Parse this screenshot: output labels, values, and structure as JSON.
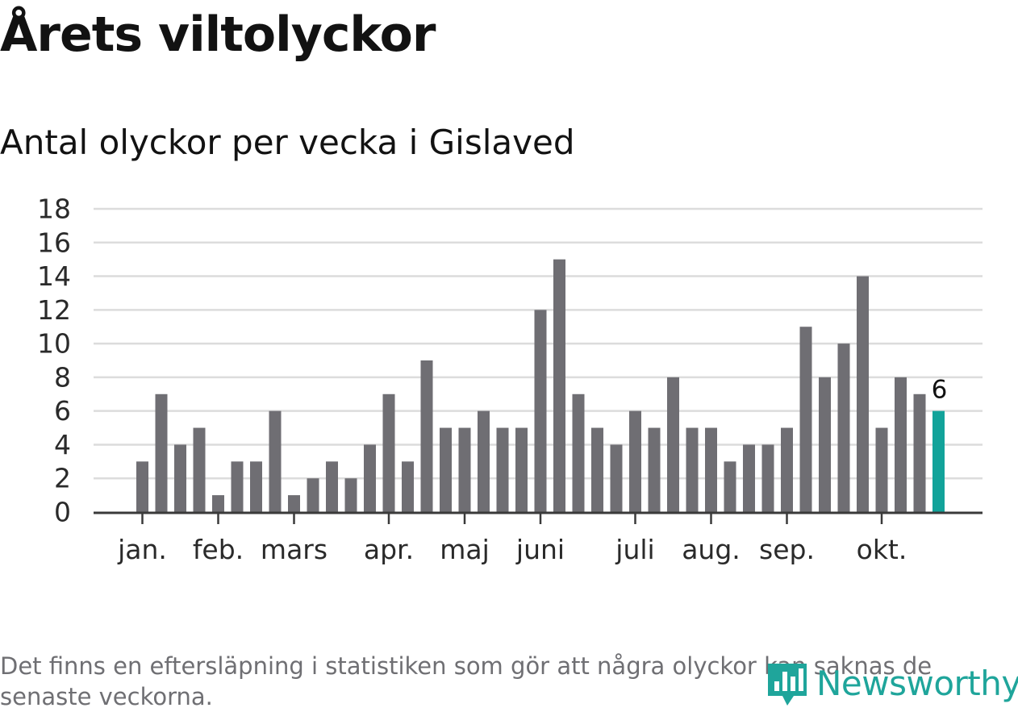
{
  "header": {
    "title": "Årets viltolyckor",
    "subtitle": "Antal olyckor per vecka i Gislaved"
  },
  "footnote": "Det finns en eftersläpning i statistiken som gör att några olyckor kan saknas de senaste veckorna.",
  "brand": {
    "name": "Newsworthy",
    "color": "#1fa59b",
    "icon": "newsworthy-chart-logo-icon"
  },
  "colors": {
    "bar": "#6f6e73",
    "highlight": "#12a39a",
    "grid": "#dcdcdc",
    "axis": "#3a3a3a"
  },
  "chart_data": {
    "type": "bar",
    "x_tick_labels": [
      "jan.",
      "feb.",
      "mars",
      "apr.",
      "maj",
      "juni",
      "juli",
      "aug.",
      "sep.",
      "okt."
    ],
    "x_tick_weeks": [
      1,
      5,
      9,
      14,
      18,
      22,
      27,
      31,
      35,
      40
    ],
    "weeks": [
      1,
      2,
      3,
      4,
      5,
      6,
      7,
      8,
      9,
      10,
      11,
      12,
      13,
      14,
      15,
      16,
      17,
      18,
      19,
      20,
      21,
      22,
      23,
      24,
      25,
      26,
      27,
      28,
      29,
      30,
      31,
      32,
      33,
      34,
      35,
      36,
      37,
      38,
      39,
      40,
      41,
      42,
      43
    ],
    "values": [
      3,
      7,
      4,
      5,
      1,
      3,
      3,
      6,
      1,
      2,
      3,
      2,
      4,
      7,
      3,
      9,
      5,
      5,
      6,
      5,
      5,
      12,
      15,
      7,
      5,
      4,
      6,
      5,
      8,
      5,
      5,
      3,
      4,
      4,
      5,
      11,
      8,
      10,
      14,
      5,
      8,
      7,
      6
    ],
    "highlight_last": true,
    "data_label": "6",
    "y_ticks": [
      "0",
      "2",
      "4",
      "6",
      "8",
      "10",
      "12",
      "14",
      "16",
      "18"
    ],
    "ylim": [
      0,
      18
    ],
    "grid": true,
    "legend": "none"
  }
}
